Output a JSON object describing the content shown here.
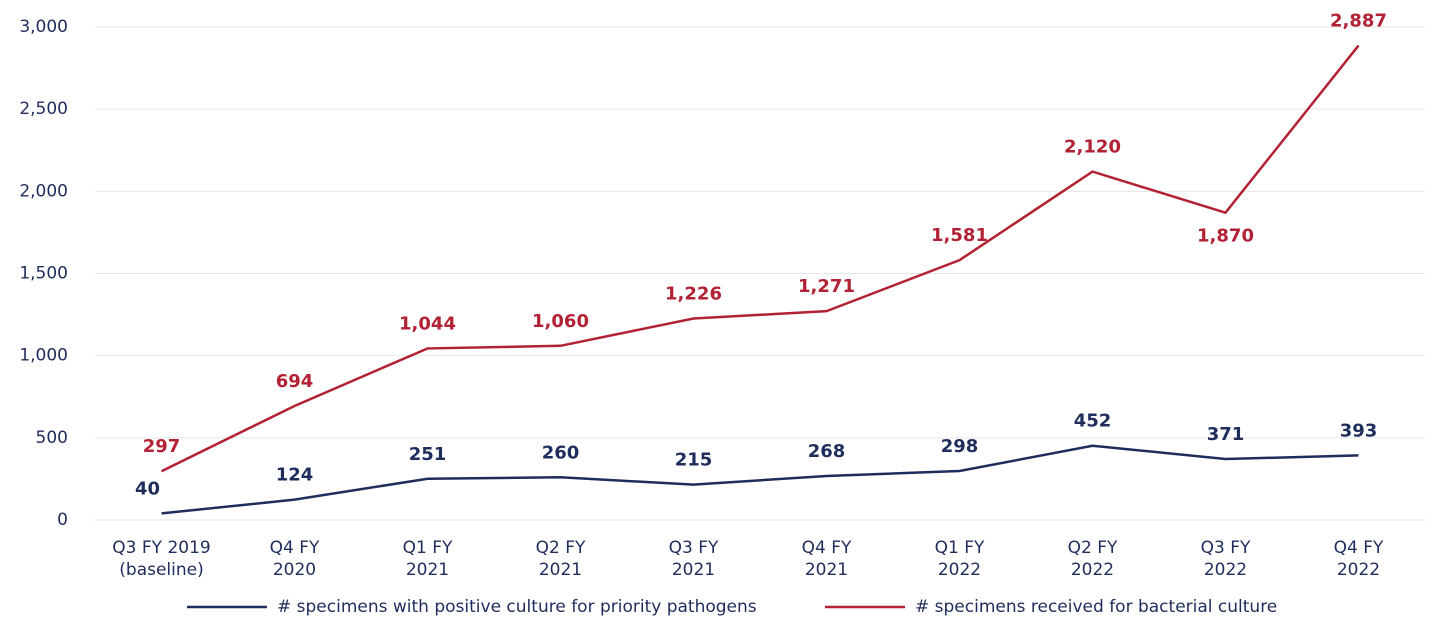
{
  "chart_data": {
    "type": "line",
    "categories": [
      "Q3 FY 2019 (baseline)",
      "Q4 FY 2020",
      "Q1 FY 2021",
      "Q2 FY 2021",
      "Q3 FY 2021",
      "Q4 FY 2021",
      "Q1 FY 2022",
      "Q2 FY 2022",
      "Q3 FY 2022",
      "Q4 FY 2022"
    ],
    "series": [
      {
        "name": "# specimens with positive culture for priority pathogens",
        "color": "#1f2d5c",
        "values": [
          40,
          124,
          251,
          260,
          215,
          268,
          298,
          452,
          371,
          393
        ],
        "value_labels": [
          "40",
          "124",
          "251",
          "260",
          "215",
          "268",
          "298",
          "452",
          "371",
          "393"
        ]
      },
      {
        "name": "# specimens received for bacterial culture",
        "color": "#b22234",
        "values": [
          297,
          694,
          1044,
          1060,
          1226,
          1271,
          1581,
          2120,
          1870,
          2887
        ],
        "value_labels": [
          "297",
          "694",
          "1,044",
          "1,060",
          "1,226",
          "1,271",
          "1,581",
          "2,120",
          "1,870",
          "2,887"
        ]
      }
    ],
    "ylim": [
      0,
      3000
    ],
    "yticks": [
      0,
      500,
      {
        "value": 1000,
        "label": "1,000"
      },
      {
        "value": 1500,
        "label": "1,500"
      },
      {
        "value": 2000,
        "label": "2,000"
      },
      {
        "value": 2500,
        "label": "2,500"
      },
      {
        "value": 3000,
        "label": "3,000"
      }
    ],
    "grid": true,
    "legend": "bottom"
  }
}
